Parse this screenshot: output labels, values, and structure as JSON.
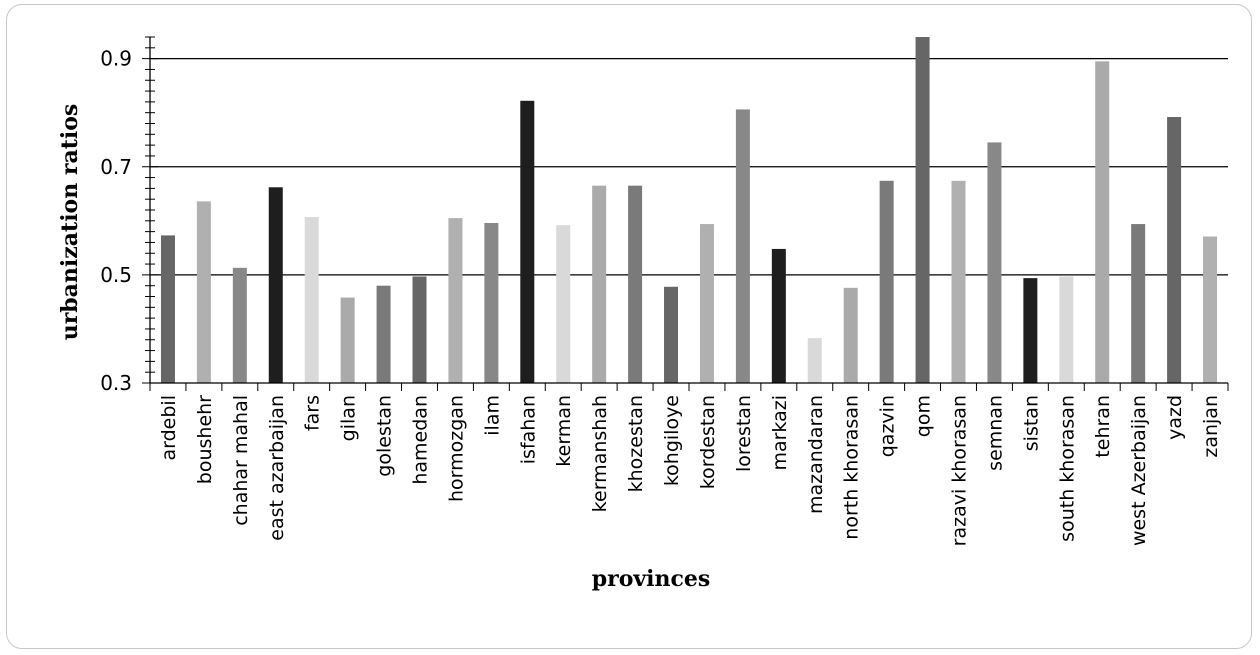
{
  "chart_data": {
    "type": "bar",
    "title": "",
    "xlabel": "provinces",
    "ylabel": "urbanization ratios",
    "ylim": [
      0.3,
      0.94
    ],
    "yticks": [
      0.3,
      0.5,
      0.7,
      0.9
    ],
    "yticks_text": [
      "0.3",
      "0.5",
      "0.7",
      "0.9"
    ],
    "grid": "horizontal major gridlines at 0.5, 0.7, 0.9",
    "legend": "none",
    "categories": [
      "ardebil",
      "boushehr",
      "chahar mahal",
      "east azarbaijan",
      "fars",
      "gilan",
      "golestan",
      "hamedan",
      "hormozgan",
      "ilam",
      "isfahan",
      "kerman",
      "kermanshah",
      "khozestan",
      "kohgiloye",
      "kordestan",
      "lorestan",
      "markazi",
      "mazandaran",
      "north khorasan",
      "qazvin",
      "qom",
      "razavi khorasan",
      "semnan",
      "sistan",
      "south khorasan",
      "tehran",
      "west Azerbaijan",
      "yazd",
      "zanjan"
    ],
    "values": [
      0.573,
      0.636,
      0.513,
      0.662,
      0.607,
      0.458,
      0.48,
      0.497,
      0.605,
      0.596,
      0.822,
      0.592,
      0.665,
      0.665,
      0.478,
      0.594,
      0.806,
      0.548,
      0.383,
      0.476,
      0.674,
      0.94,
      0.674,
      0.745,
      0.494,
      0.497,
      0.895,
      0.594,
      0.792,
      0.571
    ],
    "bar_colors": [
      "#666666",
      "#b0b0b0",
      "#888888",
      "#1e1e1e",
      "#d9d9d9",
      "#aaaaaa",
      "#7a7a7a",
      "#666666",
      "#b0b0b0",
      "#888888",
      "#1e1e1e",
      "#d9d9d9",
      "#aaaaaa",
      "#7a7a7a",
      "#666666",
      "#b0b0b0",
      "#888888",
      "#1e1e1e",
      "#d9d9d9",
      "#aaaaaa",
      "#7a7a7a",
      "#666666",
      "#b0b0b0",
      "#888888",
      "#1e1e1e",
      "#d9d9d9",
      "#aaaaaa",
      "#7a7a7a",
      "#666666",
      "#b0b0b0"
    ]
  }
}
